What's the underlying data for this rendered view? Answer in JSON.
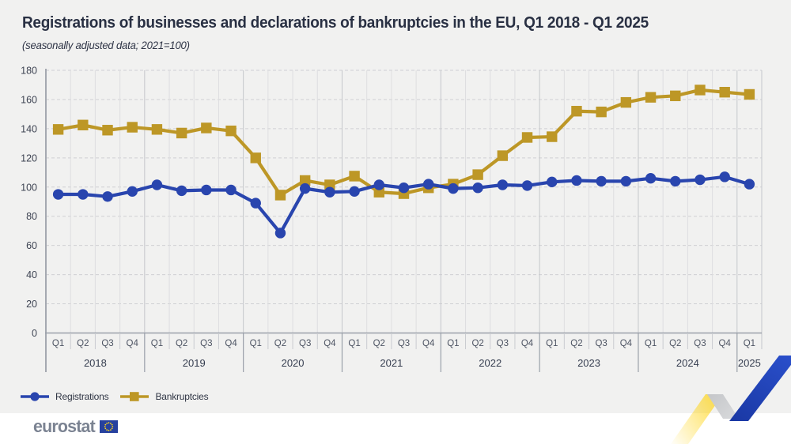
{
  "header": {
    "title": "Registrations of businesses and declarations of bankruptcies in the EU, Q1 2018 - Q1 2025",
    "subtitle": "(seasonally adjusted data; 2021=100)"
  },
  "chart_data": {
    "type": "line",
    "title": "Registrations of businesses and declarations of bankruptcies in the EU, Q1 2018 - Q1 2025",
    "subtitle": "(seasonally adjusted data; 2021=100)",
    "x_unit": "quarter",
    "quarters": [
      "Q1",
      "Q2",
      "Q3",
      "Q4",
      "Q1",
      "Q2",
      "Q3",
      "Q4",
      "Q1",
      "Q2",
      "Q3",
      "Q4",
      "Q1",
      "Q2",
      "Q3",
      "Q4",
      "Q1",
      "Q2",
      "Q3",
      "Q4",
      "Q1",
      "Q2",
      "Q3",
      "Q4",
      "Q1",
      "Q2",
      "Q3",
      "Q4",
      "Q1"
    ],
    "year_groups": [
      {
        "year": "2018",
        "n": 4
      },
      {
        "year": "2019",
        "n": 4
      },
      {
        "year": "2020",
        "n": 4
      },
      {
        "year": "2021",
        "n": 4
      },
      {
        "year": "2022",
        "n": 4
      },
      {
        "year": "2023",
        "n": 4
      },
      {
        "year": "2024",
        "n": 4
      },
      {
        "year": "2025",
        "n": 1
      }
    ],
    "ylim": [
      0,
      180
    ],
    "ytick_step": 20,
    "grid": {
      "horizontal": "dashed",
      "vertical": "solid quarter boundaries, darker at year boundaries"
    },
    "legend_position": "bottom-left",
    "series": [
      {
        "name": "Registrations",
        "marker": "circle",
        "color": "#2945ae",
        "values": [
          95,
          95,
          93.5,
          97,
          101.5,
          97.5,
          98,
          98,
          89,
          68.5,
          99,
          96.5,
          97,
          101.5,
          99.5,
          102,
          99,
          99.5,
          101.5,
          101,
          103.5,
          104.5,
          104,
          104,
          106,
          104,
          105,
          107,
          102
        ]
      },
      {
        "name": "Bankruptcies",
        "marker": "square",
        "color": "#bd9726",
        "values": [
          139.5,
          142.5,
          139,
          141,
          139.5,
          137,
          140.5,
          138.5,
          120,
          94.5,
          104.5,
          101.5,
          107.5,
          96.5,
          95.5,
          99.5,
          102,
          108.5,
          121.5,
          134,
          134.5,
          152,
          151.5,
          158,
          161.5,
          162.5,
          166.5,
          165,
          163.5
        ]
      }
    ]
  },
  "legend": {
    "items": [
      {
        "label": "Registrations",
        "color": "#2945ae",
        "marker": "circle"
      },
      {
        "label": "Bankruptcies",
        "color": "#bd9726",
        "marker": "square"
      }
    ]
  },
  "footer": {
    "brand": "eurostat",
    "flag_blue": "#26419e",
    "star_yellow": "#ffd617"
  },
  "decoration": {
    "yellow": "#ffd30e",
    "silver_dark": "#a5a7ab",
    "silver_light": "#f0f1f2",
    "blue_dark": "#16339b",
    "blue_light": "#2b50cc"
  }
}
